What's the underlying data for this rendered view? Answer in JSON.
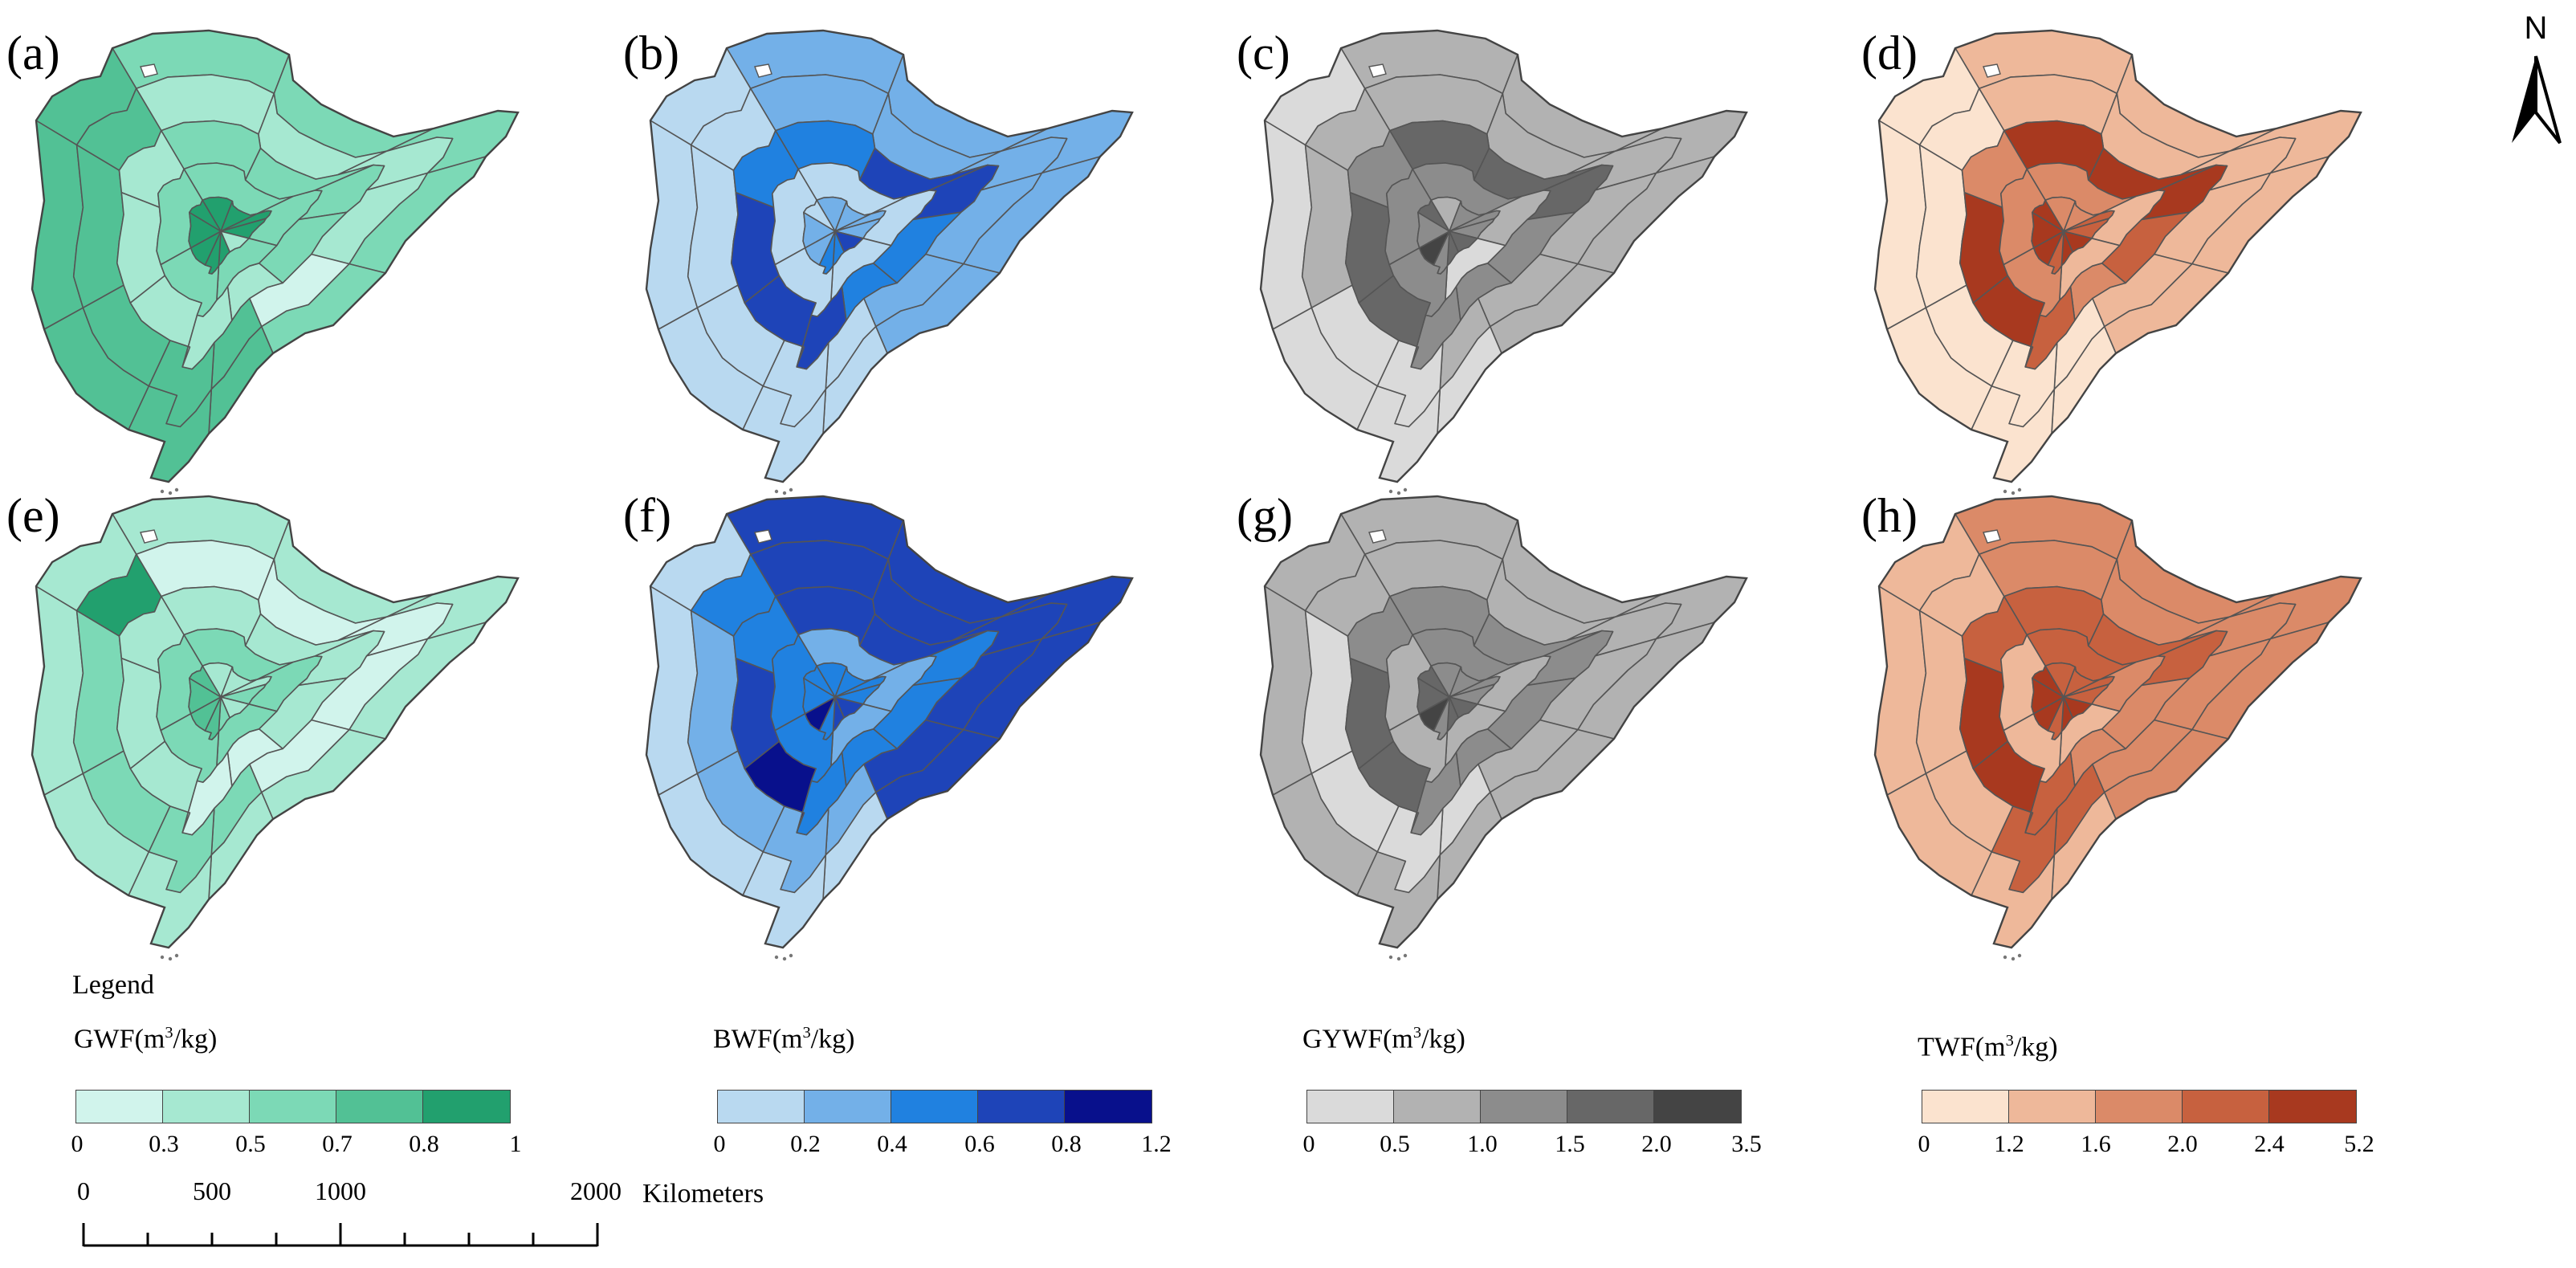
{
  "panels": [
    {
      "label": "(a)",
      "palette": "gwf",
      "classes": [
        2,
        2,
        2,
        2,
        2,
        3,
        3,
        3,
        3,
        3,
        1,
        1,
        1,
        1,
        0,
        3,
        3,
        3,
        3,
        3,
        2,
        2,
        2,
        2,
        1,
        1,
        1,
        1,
        1,
        2,
        2,
        2,
        2,
        2,
        4,
        4,
        4,
        4,
        1,
        4,
        4,
        4,
        4,
        4
      ]
    },
    {
      "label": "(b)",
      "palette": "bwf",
      "classes": [
        1,
        1,
        1,
        1,
        1,
        0,
        0,
        0,
        0,
        0,
        1,
        1,
        1,
        1,
        1,
        0,
        0,
        0,
        0,
        0,
        2,
        3,
        3,
        2,
        2,
        3,
        3,
        3,
        2,
        0,
        0,
        0,
        0,
        0,
        1,
        1,
        1,
        1,
        3,
        2,
        2,
        1,
        1,
        0
      ]
    },
    {
      "label": "(c)",
      "palette": "gywf",
      "classes": [
        1,
        1,
        1,
        1,
        1,
        0,
        0,
        0,
        0,
        0,
        1,
        1,
        1,
        1,
        1,
        1,
        0,
        0,
        1,
        1,
        3,
        3,
        3,
        2,
        2,
        2,
        3,
        3,
        2,
        2,
        1,
        0,
        2,
        2,
        1,
        2,
        2,
        2,
        3,
        3,
        2,
        4,
        2,
        3
      ]
    },
    {
      "label": "(d)",
      "palette": "twf",
      "classes": [
        1,
        1,
        1,
        1,
        1,
        0,
        0,
        0,
        0,
        0,
        1,
        1,
        1,
        1,
        1,
        0,
        0,
        0,
        0,
        0,
        4,
        4,
        4,
        3,
        2,
        3,
        4,
        4,
        2,
        2,
        1,
        1,
        2,
        2,
        2,
        2,
        3,
        3,
        4,
        4,
        3,
        4,
        4,
        4
      ]
    },
    {
      "label": "(e)",
      "palette": "gwf",
      "classes": [
        1,
        1,
        1,
        1,
        1,
        1,
        1,
        1,
        1,
        1,
        0,
        0,
        0,
        0,
        0,
        2,
        2,
        2,
        2,
        4,
        1,
        1,
        1,
        1,
        0,
        0,
        1,
        1,
        1,
        2,
        2,
        2,
        2,
        2,
        1,
        1,
        1,
        2,
        1,
        2,
        3,
        3,
        3,
        3
      ]
    },
    {
      "label": "(f)",
      "palette": "bwf",
      "classes": [
        3,
        3,
        3,
        3,
        3,
        0,
        0,
        0,
        0,
        0,
        3,
        3,
        3,
        3,
        3,
        1,
        1,
        1,
        1,
        2,
        3,
        3,
        2,
        2,
        2,
        2,
        4,
        3,
        2,
        1,
        1,
        1,
        2,
        2,
        2,
        2,
        2,
        2,
        3,
        3,
        2,
        4,
        2,
        2
      ]
    },
    {
      "label": "(g)",
      "palette": "gywf",
      "classes": [
        1,
        1,
        1,
        1,
        1,
        1,
        1,
        1,
        1,
        1,
        1,
        1,
        1,
        1,
        1,
        0,
        0,
        0,
        0,
        1,
        2,
        2,
        2,
        2,
        2,
        2,
        3,
        3,
        2,
        2,
        1,
        1,
        1,
        1,
        2,
        2,
        2,
        2,
        3,
        3,
        2,
        4,
        3,
        3
      ]
    },
    {
      "label": "(h)",
      "palette": "twf",
      "classes": [
        2,
        2,
        2,
        2,
        2,
        1,
        1,
        1,
        1,
        1,
        2,
        2,
        2,
        2,
        2,
        3,
        3,
        1,
        1,
        1,
        3,
        3,
        3,
        2,
        2,
        3,
        4,
        4,
        3,
        3,
        2,
        1,
        1,
        1,
        3,
        3,
        3,
        3,
        4,
        4,
        3,
        4,
        4,
        4
      ]
    }
  ],
  "palettes": {
    "gwf": [
      "#d1f4ec",
      "#a6e8d1",
      "#7cd9b6",
      "#52c195",
      "#22a06e"
    ],
    "bwf": [
      "#b9d9f0",
      "#73b0e8",
      "#2081e0",
      "#1e44b8",
      "#08108c"
    ],
    "gywf": [
      "#dadada",
      "#b2b2b2",
      "#8c8c8c",
      "#676767",
      "#444444"
    ],
    "twf": [
      "#fbe3cf",
      "#eeb89a",
      "#db8a68",
      "#c7613f",
      "#a8391f"
    ]
  },
  "north_arrow": {
    "label": "N"
  },
  "legend": {
    "title": "Legend",
    "items": [
      {
        "name": "GWF",
        "unit_prefix": "(m",
        "unit_sup": "3",
        "unit_suffix": "/kg)",
        "palette": "gwf",
        "ticks": [
          "0",
          "0.3",
          "0.5",
          "0.7",
          "0.8",
          "1"
        ]
      },
      {
        "name": "BWF",
        "unit_prefix": "(m",
        "unit_sup": "3",
        "unit_suffix": "/kg)",
        "palette": "bwf",
        "ticks": [
          "0",
          "0.2",
          "0.4",
          "0.6",
          "0.8",
          "1.2"
        ]
      },
      {
        "name": "GYWF",
        "unit_prefix": "(m",
        "unit_sup": "3",
        "unit_suffix": "/kg)",
        "palette": "gywf",
        "ticks": [
          "0",
          "0.5",
          "1.0",
          "1.5",
          "2.0",
          "3.5"
        ]
      },
      {
        "name": "TWF",
        "unit_prefix": "(m",
        "unit_sup": "3",
        "unit_suffix": "/kg)",
        "palette": "twf",
        "ticks": [
          "0",
          "1.2",
          "1.6",
          "2.0",
          "2.4",
          "5.2"
        ]
      }
    ]
  },
  "scale_bar": {
    "labels": [
      "0",
      "500",
      "1000",
      "2000"
    ],
    "unit": "Kilometers"
  }
}
